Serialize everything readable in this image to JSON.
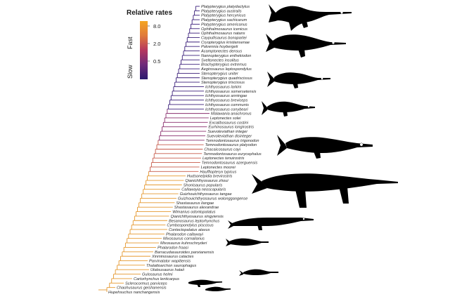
{
  "legend": {
    "title": "Relative rates",
    "fast_label": "Fast",
    "slow_label": "Slow",
    "ticks": [
      "8.0",
      "2.0",
      "0.5"
    ],
    "colors": {
      "fast": "#f5a623",
      "mid": "#b5375f",
      "slow": "#2a1a6e"
    }
  },
  "taxa": [
    "Platypterygius platydactylus",
    "Platypterygius australis",
    "Platypterygius hercynicus",
    "Platypterygius sachicarum",
    "Platypterygius americanus",
    "Ophthalmosaurus icenicus",
    "Ophthalmosaurus natans",
    "Caypullisaurus bonapartei",
    "Cryopterygius kristiansenae",
    "Palvennia hoybergeti",
    "Acamptonectes densus",
    "Nannopterygius enthekiodon",
    "Sveltonectes insolitus",
    "Brachypterygius extremus",
    "Aegirosaurus leptospondylus",
    "Stenopterygius uniter",
    "Stenopterygius quadriscissus",
    "Stenopterygius triscissus",
    "Ichthyosaurus larkini",
    "Ichthyosaurus somersetensis",
    "Ichthyosaurus anningae",
    "Ichthyosaurus breviceps",
    "Ichthyosaurus communis",
    "Ichthyosaurus conybeari",
    "Malawania anachronus",
    "Leptonectes solei",
    "Excalibosaurus costini",
    "Eurhinosaurus longirostris",
    "Suevoleviathan integer",
    "Suevoleviathan disinteger",
    "Temnodontosaurus trigonodon",
    "Temnodontosaurus platyodon",
    "Chacaicosaurus cayi",
    "Temnodontosaurus eurycephalus",
    "Leptonectes tenuirostris",
    "Temnodontosaurus azerguensis",
    "Leptonectes moorei",
    "Hauffiopteryx typicus",
    "Hudsonelpidia brevirostris",
    "Qianichthyosaurus zhoui",
    "Shonisaurus popularis",
    "Callawayia neoscapularis",
    "Guizhouichthyosaurus tangae",
    "Guizhouichthyosaurus wolonggangense",
    "Shastasaurus liangae",
    "Shastasaurus alexandrae",
    "Wimanius odontopalatus",
    "Qianichthyosaurus xingyiensis",
    "Besanosaurus leptorhynchus",
    "Cymbospondylus piscosus",
    "Contectopalatus atavus",
    "Phalarodon callawayi",
    "Mixosaurus cornalianus",
    "Mixosaurus kuhnschnyderi",
    "Phalarodon fraasi",
    "Barracudasauroides panxianensis",
    "Xinminosaurus catactes",
    "Parvinatator wapitiensis",
    "Thalattoarchon saurophagus",
    "Utatsusaurus hataii",
    "Gulosaurus helmi",
    "Cartorhynchus lenticarpus",
    "Sclerocormus parviceps",
    "Chaohusaurus geishanensis",
    "Hupehsuchus nanchangensis"
  ]
}
